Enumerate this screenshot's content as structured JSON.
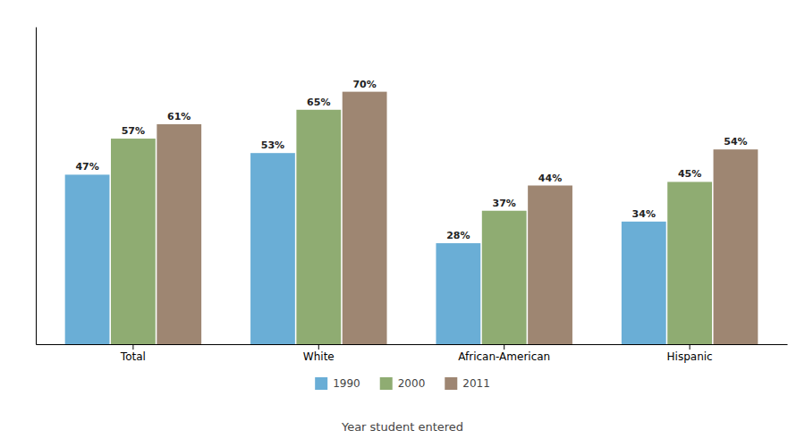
{
  "chart_data": {
    "type": "bar",
    "categories": [
      "Total",
      "White",
      "African-American",
      "Hispanic"
    ],
    "series": [
      {
        "name": "1990",
        "color": "#6aaed6",
        "values": [
          47,
          53,
          28,
          34
        ],
        "value_labels": [
          "47%",
          "53%",
          "28%",
          "34%"
        ]
      },
      {
        "name": "2000",
        "color": "#8fac72",
        "values": [
          57,
          65,
          37,
          45
        ],
        "value_labels": [
          "57%",
          "65%",
          "37%",
          "45%"
        ]
      },
      {
        "name": "2011",
        "color": "#9e8672",
        "values": [
          61,
          70,
          44,
          54
        ],
        "value_labels": [
          "61%",
          "70%",
          "44%",
          "54%"
        ]
      }
    ],
    "xlabel": "Year student entered",
    "ylim": [
      0,
      88
    ],
    "data_labels": true,
    "tick_labels": "x",
    "grid": false,
    "legend": "bottom"
  }
}
